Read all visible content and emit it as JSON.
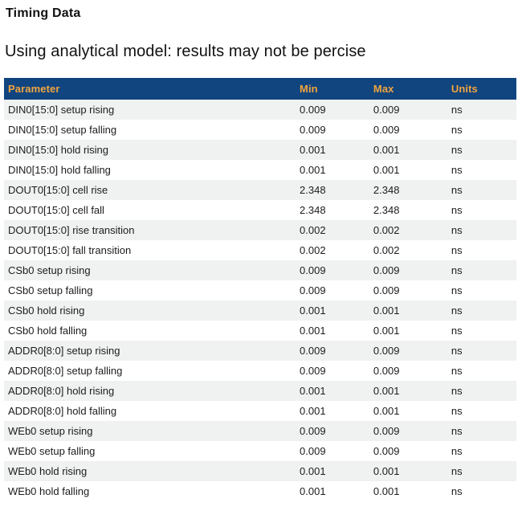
{
  "page": {
    "title": "Timing Data",
    "subtitle": "Using analytical model: results may not be percise"
  },
  "table": {
    "columns": [
      "Parameter",
      "Min",
      "Max",
      "Units"
    ],
    "rows": [
      {
        "parameter": "DIN0[15:0] setup rising",
        "min": "0.009",
        "max": "0.009",
        "units": "ns"
      },
      {
        "parameter": "DIN0[15:0] setup falling",
        "min": "0.009",
        "max": "0.009",
        "units": "ns"
      },
      {
        "parameter": "DIN0[15:0] hold rising",
        "min": "0.001",
        "max": "0.001",
        "units": "ns"
      },
      {
        "parameter": "DIN0[15:0] hold falling",
        "min": "0.001",
        "max": "0.001",
        "units": "ns"
      },
      {
        "parameter": "DOUT0[15:0] cell rise",
        "min": "2.348",
        "max": "2.348",
        "units": "ns"
      },
      {
        "parameter": "DOUT0[15:0] cell fall",
        "min": "2.348",
        "max": "2.348",
        "units": "ns"
      },
      {
        "parameter": "DOUT0[15:0] rise transition",
        "min": "0.002",
        "max": "0.002",
        "units": "ns"
      },
      {
        "parameter": "DOUT0[15:0] fall transition",
        "min": "0.002",
        "max": "0.002",
        "units": "ns"
      },
      {
        "parameter": "CSb0 setup rising",
        "min": "0.009",
        "max": "0.009",
        "units": "ns"
      },
      {
        "parameter": "CSb0 setup falling",
        "min": "0.009",
        "max": "0.009",
        "units": "ns"
      },
      {
        "parameter": "CSb0 hold rising",
        "min": "0.001",
        "max": "0.001",
        "units": "ns"
      },
      {
        "parameter": "CSb0 hold falling",
        "min": "0.001",
        "max": "0.001",
        "units": "ns"
      },
      {
        "parameter": "ADDR0[8:0] setup rising",
        "min": "0.009",
        "max": "0.009",
        "units": "ns"
      },
      {
        "parameter": "ADDR0[8:0] setup falling",
        "min": "0.009",
        "max": "0.009",
        "units": "ns"
      },
      {
        "parameter": "ADDR0[8:0] hold rising",
        "min": "0.001",
        "max": "0.001",
        "units": "ns"
      },
      {
        "parameter": "ADDR0[8:0] hold falling",
        "min": "0.001",
        "max": "0.001",
        "units": "ns"
      },
      {
        "parameter": "WEb0 setup rising",
        "min": "0.009",
        "max": "0.009",
        "units": "ns"
      },
      {
        "parameter": "WEb0 setup falling",
        "min": "0.009",
        "max": "0.009",
        "units": "ns"
      },
      {
        "parameter": "WEb0 hold rising",
        "min": "0.001",
        "max": "0.001",
        "units": "ns"
      },
      {
        "parameter": "WEb0 hold falling",
        "min": "0.001",
        "max": "0.001",
        "units": "ns"
      }
    ]
  },
  "colors": {
    "header_bg": "#11457f",
    "header_text": "#f0a43f",
    "row_alt_bg": "#f0f1f1",
    "body_text": "#1c1c1c"
  }
}
